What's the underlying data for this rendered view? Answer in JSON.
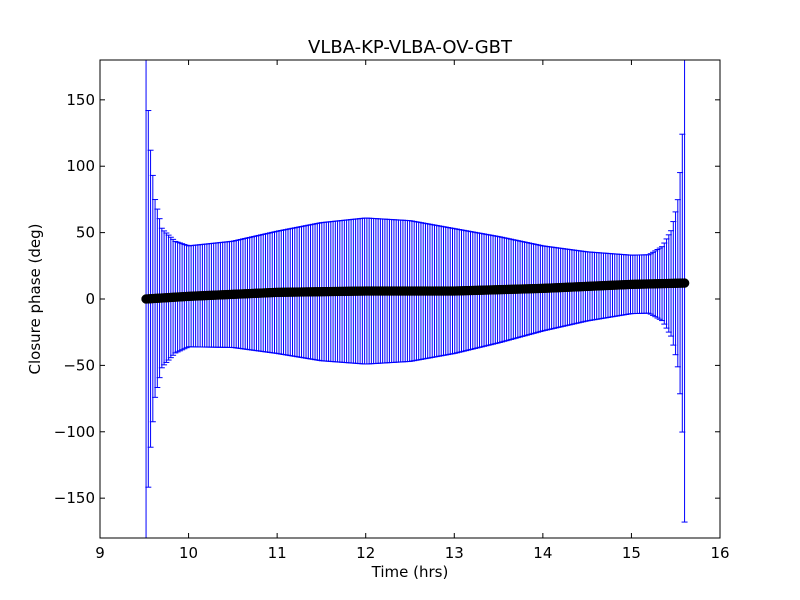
{
  "chart_data": {
    "type": "scatter",
    "title": "VLBA-KP-VLBA-OV-GBT",
    "xlabel": "Time (hrs)",
    "ylabel": "Closure phase (deg)",
    "xlim": [
      9,
      16
    ],
    "ylim": [
      -180,
      180
    ],
    "x_ticks": [
      9,
      10,
      11,
      12,
      13,
      14,
      15,
      16
    ],
    "x_tick_labels": [
      "9",
      "10",
      "11",
      "12",
      "13",
      "14",
      "15",
      "16"
    ],
    "y_ticks": [
      -150,
      -100,
      -50,
      0,
      50,
      100,
      150
    ],
    "y_tick_labels": [
      "−150",
      "−100",
      "−50",
      "0",
      "50",
      "100",
      "150"
    ],
    "grid": false,
    "legend": "none",
    "series": [
      {
        "marker": "circle",
        "color": "#000000",
        "errorbar_color": "#0000ff",
        "x_range": [
          9.52,
          15.6
        ],
        "n_points": 240,
        "phase_profile": [
          {
            "x": 9.52,
            "y": 0
          },
          {
            "x": 10.0,
            "y": 2
          },
          {
            "x": 11.0,
            "y": 5
          },
          {
            "x": 12.0,
            "y": 6
          },
          {
            "x": 13.0,
            "y": 6
          },
          {
            "x": 14.0,
            "y": 8
          },
          {
            "x": 15.0,
            "y": 11
          },
          {
            "x": 15.6,
            "y": 12
          }
        ],
        "error_profile": [
          {
            "x": 9.52,
            "err": 180
          },
          {
            "x": 9.56,
            "err": 120
          },
          {
            "x": 9.62,
            "err": 75
          },
          {
            "x": 9.7,
            "err": 52
          },
          {
            "x": 9.85,
            "err": 42
          },
          {
            "x": 10.0,
            "err": 38
          },
          {
            "x": 10.5,
            "err": 40
          },
          {
            "x": 11.0,
            "err": 46
          },
          {
            "x": 11.5,
            "err": 52
          },
          {
            "x": 12.0,
            "err": 55
          },
          {
            "x": 12.5,
            "err": 53
          },
          {
            "x": 13.0,
            "err": 47
          },
          {
            "x": 13.5,
            "err": 40
          },
          {
            "x": 14.0,
            "err": 32
          },
          {
            "x": 14.5,
            "err": 26
          },
          {
            "x": 15.0,
            "err": 22
          },
          {
            "x": 15.2,
            "err": 22
          },
          {
            "x": 15.35,
            "err": 28
          },
          {
            "x": 15.45,
            "err": 40
          },
          {
            "x": 15.52,
            "err": 60
          },
          {
            "x": 15.57,
            "err": 100
          },
          {
            "x": 15.6,
            "err": 180
          }
        ]
      }
    ]
  }
}
